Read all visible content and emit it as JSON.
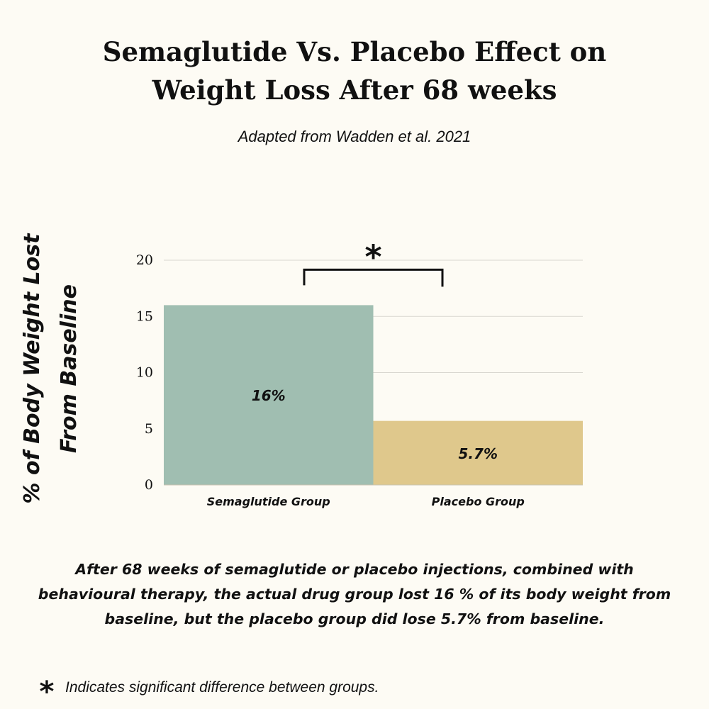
{
  "title_line1": "Semaglutide Vs. Placebo Effect on",
  "title_line2": "Weight Loss After 68 weeks",
  "subtitle": "Adapted from Wadden et al. 2021",
  "caption": "After 68 weeks of semaglutide or placebo injections, combined with behavioural therapy, the actual drug group lost 16 % of its body weight from baseline, but the placebo group did lose 5.7% from baseline.",
  "footnote": {
    "symbol": "*",
    "text": "Indicates significant difference between groups."
  },
  "colors": {
    "background": "#fdfbf4",
    "semaglutide": "#a0beb1",
    "placebo": "#dfc88c",
    "grid": "#d9d7d0",
    "text": "#111111"
  },
  "chart_data": {
    "type": "bar",
    "title": "Semaglutide Vs. Placebo Effect on Weight Loss After 68 weeks",
    "subtitle": "Adapted from Wadden et al. 2021",
    "xlabel": "",
    "ylabel_lines": [
      "% of Body Weight Lost",
      "From Baseline"
    ],
    "categories": [
      "Semaglutide Group",
      "Placebo Group"
    ],
    "values": [
      16,
      5.7
    ],
    "data_labels": [
      "16%",
      "5.7%"
    ],
    "bar_colors": [
      "#a0beb1",
      "#dfc88c"
    ],
    "ylim": [
      0,
      20
    ],
    "yticks": [
      0,
      5,
      10,
      15,
      20
    ],
    "grid": true,
    "significance": {
      "between": [
        0,
        1
      ],
      "marker": "*",
      "at_value": 19.6
    }
  }
}
